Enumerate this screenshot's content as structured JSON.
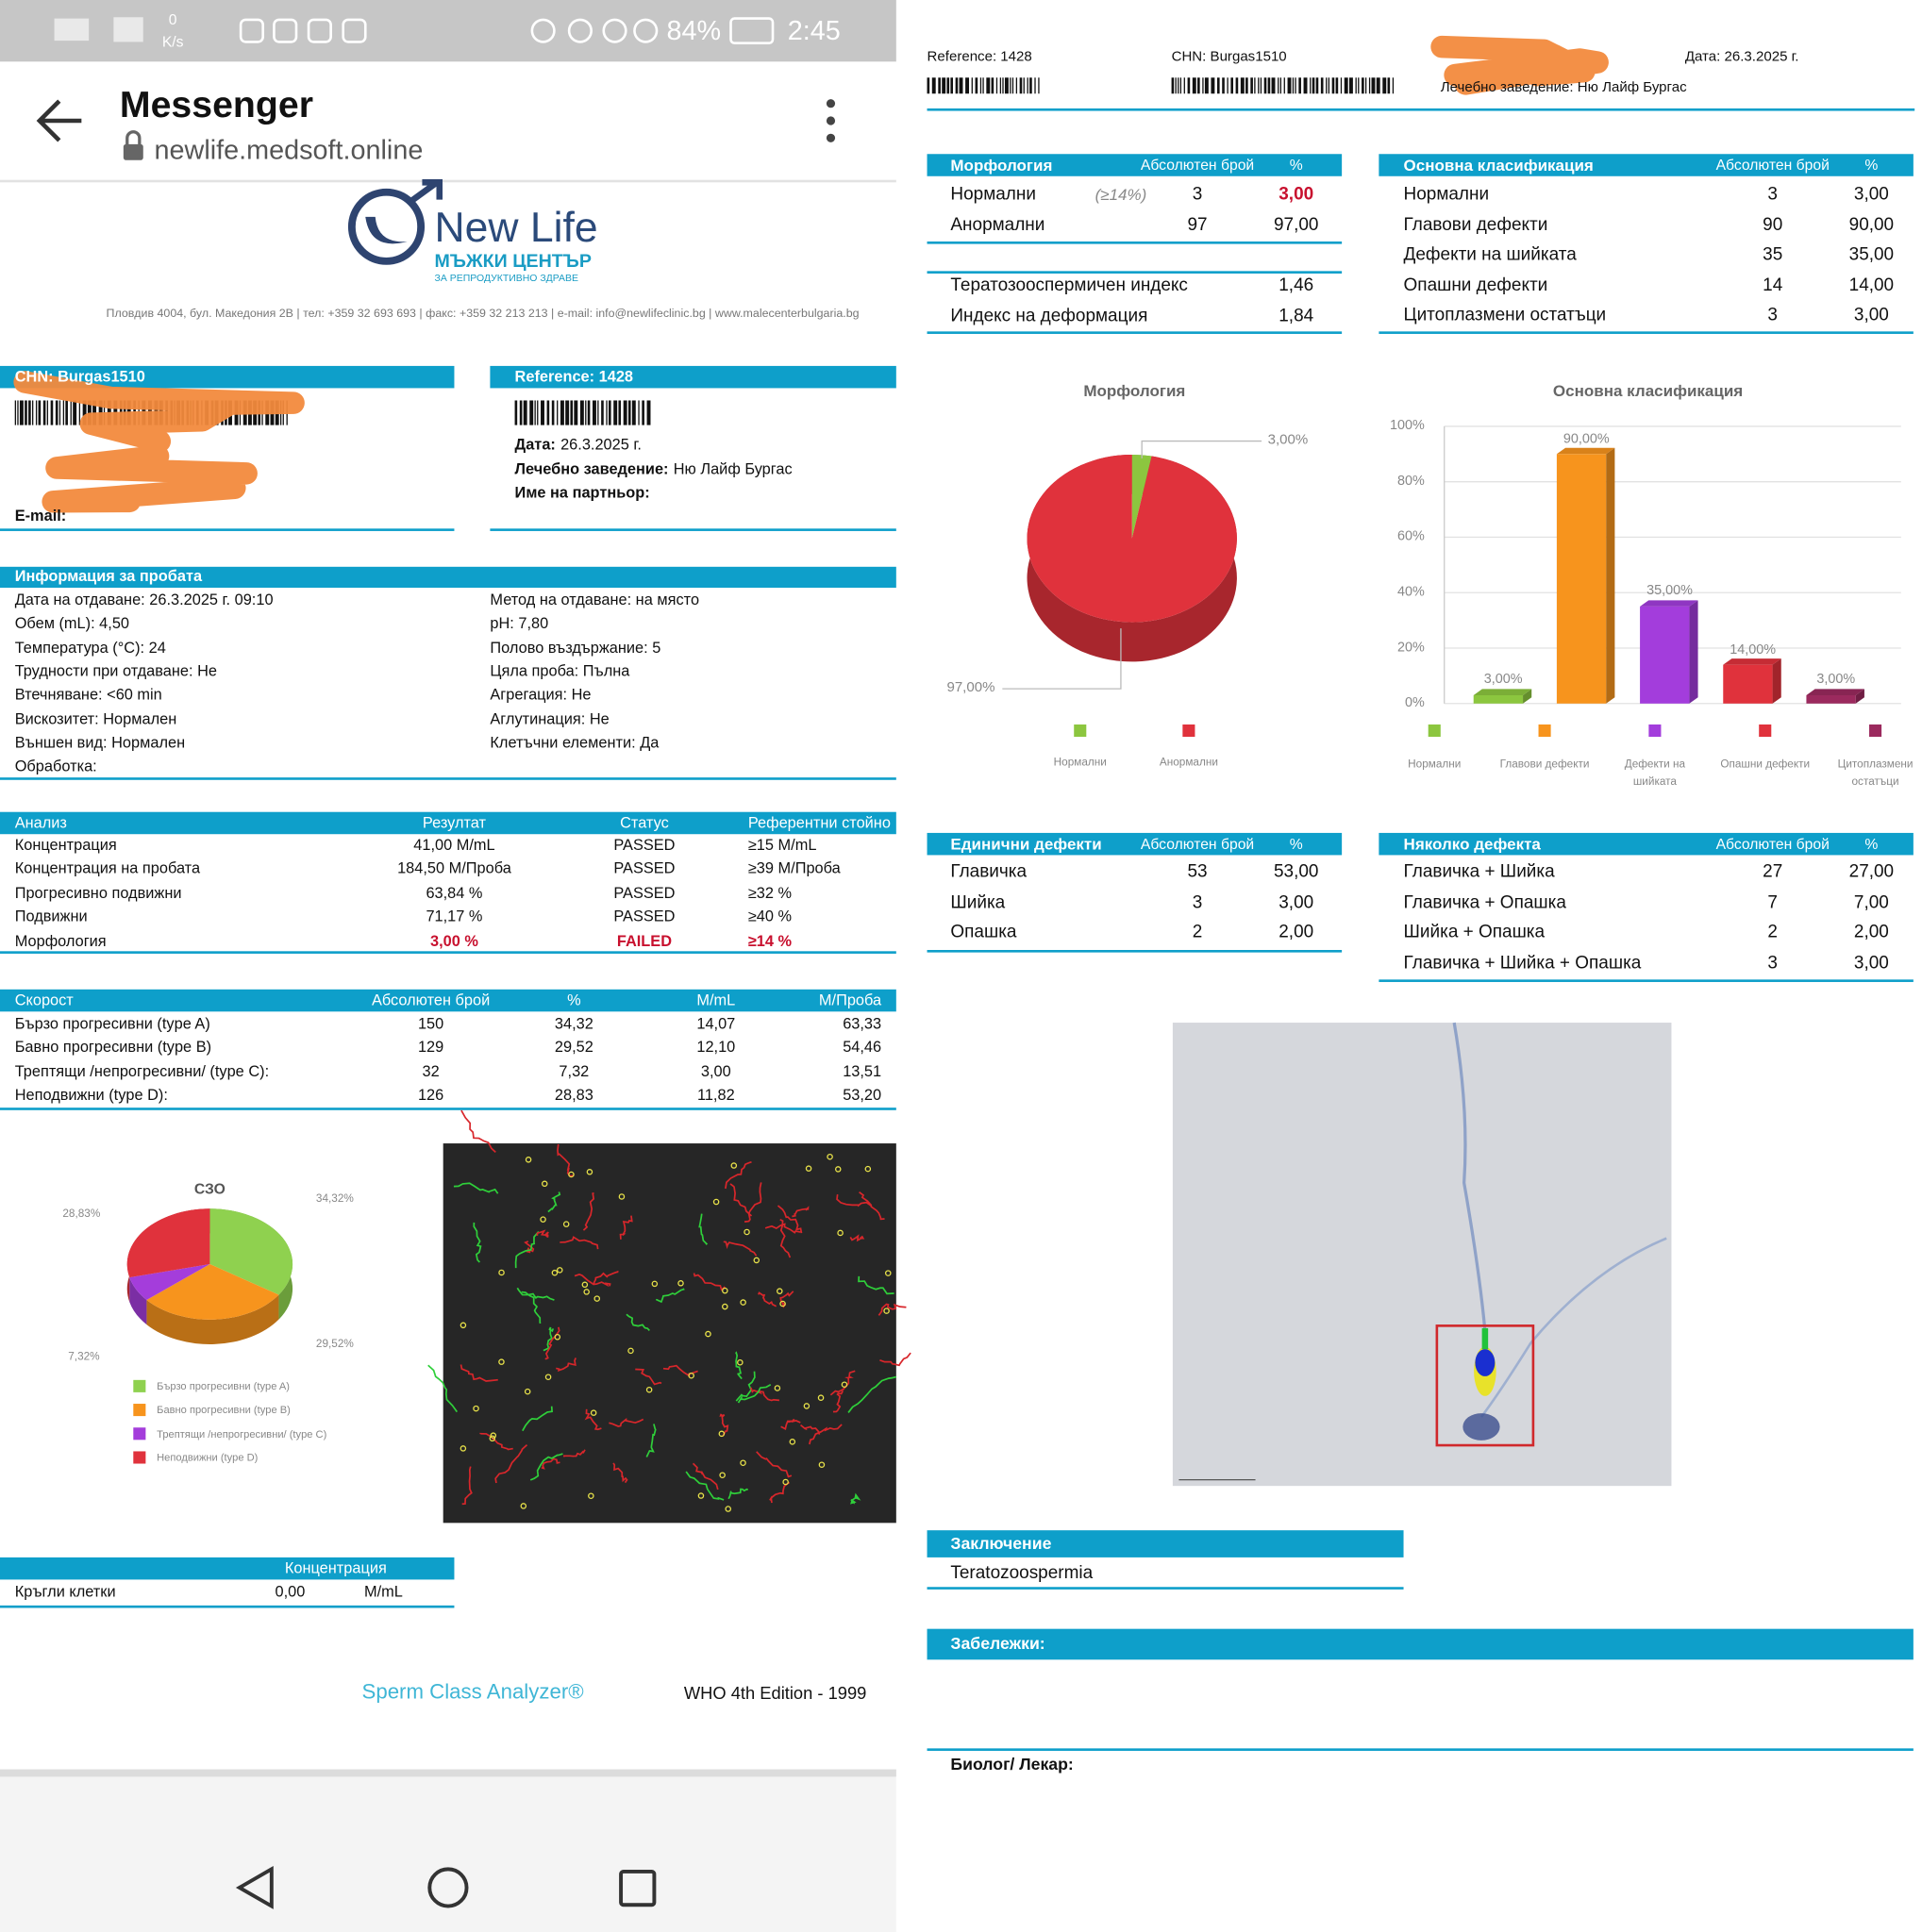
{
  "status_bar": {
    "speed": [
      "0",
      "K/s"
    ],
    "battery": "84%",
    "time": "2:45"
  },
  "app_bar": {
    "title": "Messenger",
    "url": "newlife.medsoft.online"
  },
  "report_left": {
    "logo": {
      "name": "New Life",
      "subtitle": "МЪЖКИ ЦЕНТЪР",
      "tagline": "ЗА РЕПРОДУКТИВНО ЗДРАВЕ"
    },
    "address": "Пловдив 4004, бул. Македония 2В | тел: +359 32 693 693 | факс: +359 32 213 213 | e-mail: info@newlifeclinic.bg | www.malecenterbulgaria.bg",
    "patient": {
      "header": "CHN: Burgas1510",
      "email_label": "E-mail:"
    },
    "reference": {
      "header": "Reference: 1428",
      "rows": [
        {
          "label": "Дата:",
          "value": "26.3.2025 г."
        },
        {
          "label": "Лечебно заведение:",
          "value": "Ню Лайф Бургас"
        },
        {
          "label": "Име на партньор:"
        }
      ]
    },
    "sample": {
      "title": "Информация за пробата",
      "left": [
        "Дата на отдаване: 26.3.2025 г. 09:10",
        "Обем (mL): 4,50",
        "Температура (°C): 24",
        "Трудности при отдаване: Не",
        "Втечняване: <60 min",
        "Вискозитет: Нормален",
        "Външен вид: Нормален",
        "Обработка:"
      ],
      "right": [
        "Метод на отдаване: на място",
        "pH: 7,80",
        "Полово въздържание: 5",
        "Цяла проба: Пълна",
        "Агрегация: Не",
        "Аглутинация: Не",
        "Клетъчни елементи: Да"
      ]
    },
    "analysis": {
      "headers": [
        "Анализ",
        "Резултат",
        "Статус",
        "Референтни стойно"
      ],
      "rows": [
        [
          "Концентрация",
          "41,00 M/mL",
          "PASSED",
          "≥15 M/mL"
        ],
        [
          "Концентрация на пробата",
          "184,50 M/Проба",
          "PASSED",
          "≥39 M/Проба"
        ],
        [
          "Прогресивно подвижни",
          "63,84 %",
          "PASSED",
          "≥32 %"
        ],
        [
          "Подвижни",
          "71,17 %",
          "PASSED",
          "≥40 %"
        ],
        [
          "Морфология",
          "3,00 %",
          "FAILED",
          "≥14 %"
        ]
      ],
      "alert_row": 4,
      "alert_color": "#c8102e"
    },
    "speed": {
      "headers": [
        "Скорост",
        "Абсолютен брой",
        "%",
        "M/mL",
        "М/Проба"
      ],
      "rows": [
        [
          "Бързо прогресивни (type A)",
          "150",
          "34,32",
          "14,07",
          "63,33"
        ],
        [
          "Бавно прогресивни (type B)",
          "129",
          "29,52",
          "12,10",
          "54,46"
        ],
        [
          "Трептящи /непрогресивни/ (type C):",
          "32",
          "7,32",
          "3,00",
          "13,51"
        ],
        [
          "Неподвижни (type D):",
          "126",
          "28,83",
          "11,82",
          "53,20"
        ]
      ]
    },
    "szo_chart": {
      "type": "pie",
      "title": "СЗО",
      "categories": [
        "Бързо прогресивни (type A)",
        "Бавно прогресивни (type B)",
        "Трептящи /непрогресивни/ (type C)",
        "Неподвижни (type D)"
      ],
      "values": [
        34.32,
        29.52,
        7.32,
        28.83
      ],
      "value_labels": [
        "34,32%",
        "29,52%",
        "7,32%",
        "28,83%"
      ],
      "colors": [
        "#8fd14f",
        "#f7941d",
        "#a43ddb",
        "#e0323c"
      ]
    },
    "round_cells": {
      "header": "Концентрация",
      "rows": [
        [
          "Кръгли клетки",
          "0,00",
          "M/mL"
        ]
      ]
    },
    "footer": {
      "analyzer": "Sperm Class Analyzer®",
      "edition": "WHO 4th Edition - 1999"
    }
  },
  "report_right": {
    "header": {
      "reference": "Reference: 1428",
      "chn": "CHN: Burgas1510",
      "date": "Дата: 26.3.2025 г.",
      "clinic": "Лечебно заведение: Ню Лайф Бургас"
    },
    "morphology": {
      "headers": [
        "Морфология",
        "Абсолютен брой",
        "%"
      ],
      "rows": [
        [
          "Нормални",
          "3",
          "3,00"
        ],
        [
          "Анормални",
          "97",
          "97,00"
        ]
      ],
      "note": "(≥14%)",
      "alert_color": "#c8102e"
    },
    "indices": {
      "rows": [
        [
          "Тератозооспермичен индекс",
          "1,46"
        ],
        [
          "Индекс на деформация",
          "1,84"
        ]
      ]
    },
    "classification": {
      "headers": [
        "Основна класификация",
        "Абсолютен брой",
        "%"
      ],
      "rows": [
        [
          "Нормални",
          "3",
          "3,00"
        ],
        [
          "Главови дефекти",
          "90",
          "90,00"
        ],
        [
          "Дефекти на шийката",
          "35",
          "35,00"
        ],
        [
          "Опашни дефекти",
          "14",
          "14,00"
        ],
        [
          "Цитоплазмени остатъци",
          "3",
          "3,00"
        ]
      ]
    },
    "morphology_chart": {
      "type": "pie",
      "title": "Морфология",
      "categories": [
        "Нормални",
        "Анормални"
      ],
      "values": [
        3,
        97
      ],
      "value_labels": [
        "3,00%",
        "97,00%"
      ],
      "colors": [
        "#8cc63f",
        "#e0323c"
      ]
    },
    "classification_chart": {
      "type": "bar",
      "title": "Основна класификация",
      "categories": [
        "Нормални",
        "Главови дефекти",
        "Дефекти на шийката",
        "Опашни дефекти",
        "Цитоплазмени остатъци"
      ],
      "values": [
        3,
        90,
        35,
        14,
        3
      ],
      "value_labels": [
        "3,00%",
        "90,00%",
        "35,00%",
        "14,00%",
        "3,00%"
      ],
      "colors": [
        "#8cc63f",
        "#f7941d",
        "#a33ddc",
        "#e0323c",
        "#9b2a5e"
      ],
      "ylim": [
        0,
        100
      ],
      "yticks": [
        {
          "value": 0,
          "label": "0%"
        },
        {
          "value": 20,
          "label": "20%"
        },
        {
          "value": 40,
          "label": "40%"
        },
        {
          "value": 60,
          "label": "60%"
        },
        {
          "value": 80,
          "label": "80%"
        },
        {
          "value": 100,
          "label": "100%"
        }
      ],
      "grid": true
    },
    "single_defects": {
      "headers": [
        "Единични дефекти",
        "Абсолютен брой",
        "%"
      ],
      "rows": [
        [
          "Главичка",
          "53",
          "53,00"
        ],
        [
          "Шийка",
          "3",
          "3,00"
        ],
        [
          "Опашка",
          "2",
          "2,00"
        ]
      ]
    },
    "multiple_defects": {
      "headers": [
        "Няколко дефекта",
        "Абсолютен брой",
        "%"
      ],
      "rows": [
        [
          "Главичка + Шийка",
          "27",
          "27,00"
        ],
        [
          "Главичка + Опашка",
          "7",
          "7,00"
        ],
        [
          "Шийка + Опашка",
          "2",
          "2,00"
        ],
        [
          "Главичка + Шийка + Опашка",
          "3",
          "3,00"
        ]
      ]
    },
    "conclusion": {
      "title": "Заключение",
      "text": "Teratozoospermia"
    },
    "remarks": "Забележки:",
    "signature": "Биолог/ Лекар:"
  }
}
